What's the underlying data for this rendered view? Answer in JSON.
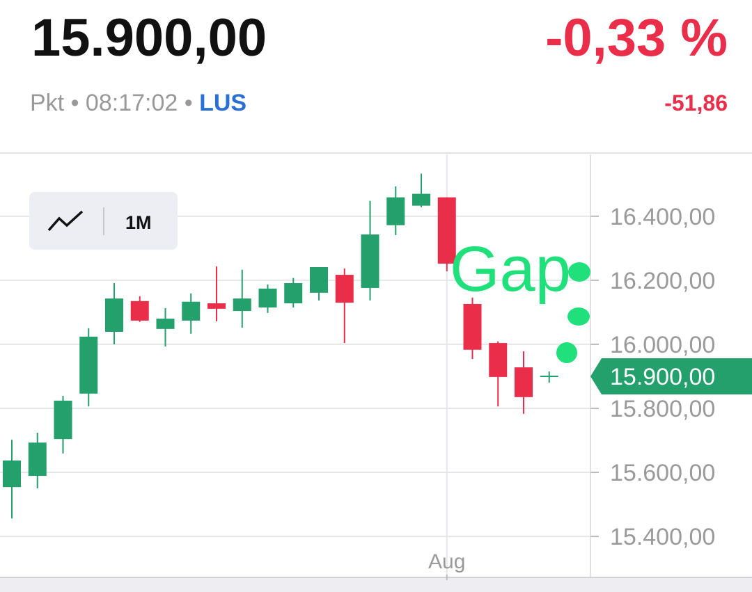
{
  "header": {
    "price": "15.900,00",
    "change_percent": "-0,33 %",
    "unit": "Pkt",
    "time": "08:17:02",
    "exchange": "LUS",
    "change_points": "-51,86"
  },
  "controls": {
    "range": "1M"
  },
  "chart_data": {
    "type": "candlestick",
    "categories": [
      null,
      null,
      null,
      null,
      null,
      null,
      null,
      null,
      null,
      null,
      null,
      null,
      null,
      null,
      null,
      null,
      null,
      "Aug",
      null,
      null,
      null,
      null
    ],
    "open": [
      15554,
      15589,
      15704,
      15846,
      16039,
      16135,
      16048,
      16074,
      16128,
      16104,
      16115,
      16128,
      16161,
      16217,
      16176,
      16372,
      16433,
      16459,
      16126,
      16004,
      15928,
      15900
    ],
    "high": [
      15702,
      15724,
      15839,
      16050,
      16191,
      16150,
      16113,
      16159,
      16243,
      16233,
      16187,
      16207,
      16241,
      16237,
      16448,
      16493,
      16533,
      16459,
      16146,
      16009,
      15978,
      15915
    ],
    "low": [
      15456,
      15550,
      15659,
      15806,
      16000,
      16070,
      15993,
      16033,
      16072,
      16052,
      16098,
      16115,
      16137,
      16004,
      16137,
      16341,
      16428,
      16228,
      15954,
      15806,
      15783,
      15880
    ],
    "close": [
      15637,
      15693,
      15824,
      16024,
      16143,
      16074,
      16080,
      16133,
      16111,
      16143,
      16174,
      16191,
      16241,
      16130,
      16343,
      16459,
      16470,
      16252,
      15983,
      15898,
      15835,
      15900
    ],
    "up_color": "#23a06b",
    "down_color": "#ea2d49",
    "ylim": [
      15272,
      16593
    ],
    "yticks": [
      {
        "value": 15400,
        "label": "15.400,00"
      },
      {
        "value": 15600,
        "label": "15.600,00"
      },
      {
        "value": 15800,
        "label": "15.800,00"
      },
      {
        "value": 16000,
        "label": "16.000,00"
      },
      {
        "value": 16200,
        "label": "16.200,00"
      },
      {
        "value": 16400,
        "label": "16.400,00"
      }
    ],
    "grid": true,
    "last_price": {
      "value": 15900,
      "label": "15.900,00"
    },
    "annotation": "Gap"
  }
}
